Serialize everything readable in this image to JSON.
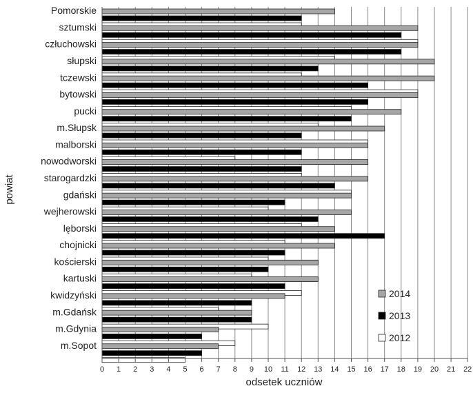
{
  "chart_data": {
    "type": "bar",
    "orientation": "horizontal",
    "title": "",
    "xlabel": "odsetek uczniów",
    "ylabel": "powiat",
    "xlim": [
      0,
      22
    ],
    "xticks": [
      "0",
      "1",
      "2",
      "3",
      "4",
      "5",
      "6",
      "7",
      "8",
      "9",
      "10",
      "11",
      "12",
      "13",
      "14",
      "15",
      "16",
      "17",
      "18",
      "19",
      "20",
      "21",
      "22"
    ],
    "grid": "vertical",
    "legend_position": "bottom-right",
    "categories": [
      "Pomorskie",
      "sztumski",
      "człuchowski",
      "słupski",
      "tczewski",
      "bytowski",
      "pucki",
      "m.Słupsk",
      "malborski",
      "nowodworski",
      "starogardzki",
      "gdański",
      "wejherowski",
      "lęborski",
      "chojnicki",
      "kościerski",
      "kartuski",
      "kwidzyński",
      "m.Gdańsk",
      "m.Gdynia",
      "m.Sopot"
    ],
    "series": [
      {
        "name": "2014",
        "color": "#a6a6a6",
        "values": [
          14,
          19,
          19,
          20,
          20,
          19,
          18,
          17,
          16,
          16,
          16,
          15,
          15,
          14,
          14,
          13,
          13,
          11,
          9,
          7,
          7
        ]
      },
      {
        "name": "2013",
        "color": "#000000",
        "values": [
          12,
          18,
          18,
          13,
          16,
          16,
          15,
          12,
          12,
          12,
          14,
          11,
          13,
          17,
          11,
          10,
          11,
          9,
          9,
          6,
          6
        ]
      },
      {
        "name": "2012",
        "color": "#ffffff",
        "values": [
          12,
          19,
          14,
          12,
          19,
          15,
          13,
          16,
          8,
          12,
          15,
          10,
          12,
          11,
          10,
          9,
          12,
          7,
          10,
          8,
          5
        ]
      }
    ]
  }
}
